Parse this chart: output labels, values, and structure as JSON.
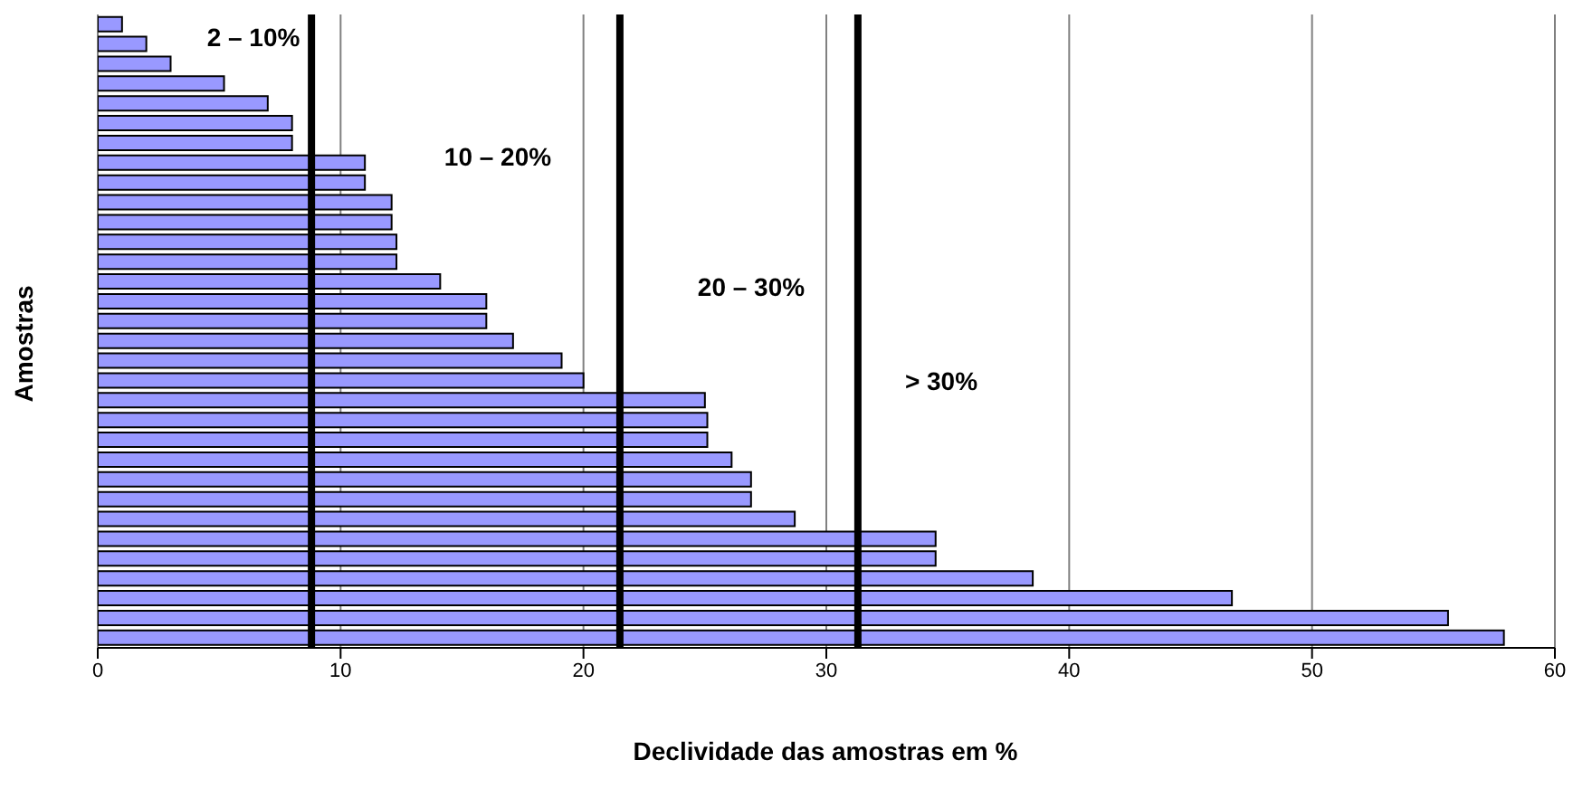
{
  "chart_data": {
    "type": "bar",
    "orientation": "horizontal",
    "xlabel": "Declividade das amostras em %",
    "ylabel": "Amostras",
    "categories": [
      null,
      null,
      null,
      null,
      null,
      null,
      null,
      null,
      null,
      null,
      null,
      null,
      null,
      null,
      null,
      null,
      null,
      null,
      null,
      null,
      null,
      null,
      null,
      null,
      null,
      null,
      null,
      null,
      null,
      null,
      null,
      null
    ],
    "values": [
      1,
      2,
      3,
      5.2,
      7,
      8,
      8,
      11,
      11,
      12.1,
      12.1,
      12.3,
      12.3,
      14.1,
      16,
      16,
      17.1,
      19.1,
      20,
      25,
      25.1,
      25.1,
      26.1,
      26.9,
      26.9,
      28.7,
      34.5,
      34.5,
      38.5,
      46.7,
      55.6,
      57.9
    ],
    "color": "#9999ff",
    "xlim": [
      0,
      60
    ],
    "xticks": [
      0,
      10,
      20,
      30,
      40,
      50,
      60
    ],
    "grid": "x",
    "ref_lines": [
      {
        "axis": "x",
        "value": 8.8,
        "color": "#000000"
      },
      {
        "axis": "x",
        "value": 21.5,
        "color": "#000000"
      },
      {
        "axis": "x",
        "value": 31.3,
        "color": "#000000"
      }
    ],
    "annotations": [
      "2 – 10%",
      "10 – 20%",
      "20 – 30%",
      "> 30%"
    ]
  }
}
